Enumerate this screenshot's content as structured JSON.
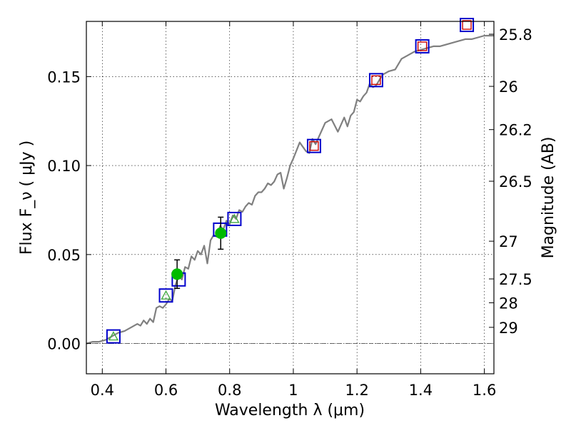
{
  "chart_data": {
    "type": "line",
    "xlabel": "Wavelength  λ (μm)",
    "ylabel": "Flux  F_ν  ( μJy )",
    "y2label": "Magnitude (AB)",
    "xlim": [
      0.35,
      1.63
    ],
    "ylim": [
      -0.017,
      0.181
    ],
    "grid": true,
    "x_ticks": [
      0.4,
      0.6,
      0.8,
      1.0,
      1.2,
      1.4,
      1.6
    ],
    "x_tick_labels": [
      "0.4",
      "0.6",
      "0.8",
      "1",
      "1.2",
      "1.4",
      "1.6"
    ],
    "y_ticks": [
      0.0,
      0.05,
      0.1,
      0.15
    ],
    "y_tick_labels": [
      "0.00",
      "0.05",
      "0.10",
      "0.15"
    ],
    "y2_ticks": [
      {
        "label": "25.8",
        "flux": 0.1738
      },
      {
        "label": "26",
        "flux": 0.1445
      },
      {
        "label": "26.2",
        "flux": 0.1202
      },
      {
        "label": "26.5",
        "flux": 0.0912
      },
      {
        "label": "27",
        "flux": 0.0575
      },
      {
        "label": "27.5",
        "flux": 0.0363
      },
      {
        "label": "28",
        "flux": 0.0229
      },
      {
        "label": "29",
        "flux": 0.0091
      }
    ],
    "model_spectrum": {
      "color": "#808080",
      "x": [
        0.35,
        0.37,
        0.39,
        0.41,
        0.43,
        0.45,
        0.47,
        0.49,
        0.51,
        0.52,
        0.53,
        0.54,
        0.55,
        0.56,
        0.57,
        0.58,
        0.59,
        0.6,
        0.61,
        0.62,
        0.63,
        0.64,
        0.65,
        0.66,
        0.67,
        0.68,
        0.69,
        0.7,
        0.71,
        0.72,
        0.73,
        0.74,
        0.75,
        0.76,
        0.77,
        0.78,
        0.79,
        0.8,
        0.81,
        0.82,
        0.83,
        0.84,
        0.85,
        0.86,
        0.87,
        0.88,
        0.89,
        0.9,
        0.91,
        0.92,
        0.93,
        0.94,
        0.95,
        0.96,
        0.97,
        0.98,
        0.99,
        1.0,
        1.02,
        1.04,
        1.05,
        1.06,
        1.07,
        1.08,
        1.1,
        1.12,
        1.14,
        1.16,
        1.17,
        1.18,
        1.19,
        1.2,
        1.21,
        1.22,
        1.23,
        1.24,
        1.25,
        1.26,
        1.27,
        1.28,
        1.3,
        1.32,
        1.34,
        1.36,
        1.38,
        1.4,
        1.42,
        1.44,
        1.46,
        1.48,
        1.5,
        1.52,
        1.54,
        1.56,
        1.58,
        1.6,
        1.63
      ],
      "y": [
        0.0,
        0.001,
        0.001,
        0.002,
        0.004,
        0.006,
        0.007,
        0.009,
        0.011,
        0.01,
        0.013,
        0.011,
        0.014,
        0.012,
        0.02,
        0.021,
        0.02,
        0.022,
        0.025,
        0.024,
        0.033,
        0.038,
        0.036,
        0.043,
        0.042,
        0.049,
        0.047,
        0.052,
        0.05,
        0.055,
        0.045,
        0.058,
        0.061,
        0.06,
        0.066,
        0.064,
        0.069,
        0.067,
        0.072,
        0.07,
        0.075,
        0.074,
        0.077,
        0.079,
        0.078,
        0.083,
        0.085,
        0.085,
        0.087,
        0.09,
        0.089,
        0.091,
        0.095,
        0.096,
        0.087,
        0.093,
        0.1,
        0.104,
        0.113,
        0.108,
        0.107,
        0.115,
        0.112,
        0.116,
        0.124,
        0.126,
        0.119,
        0.127,
        0.122,
        0.128,
        0.13,
        0.137,
        0.136,
        0.139,
        0.141,
        0.146,
        0.144,
        0.145,
        0.148,
        0.151,
        0.153,
        0.154,
        0.16,
        0.162,
        0.164,
        0.165,
        0.166,
        0.167,
        0.167,
        0.168,
        0.169,
        0.17,
        0.171,
        0.171,
        0.172,
        0.173,
        0.173
      ]
    },
    "series": [
      {
        "name": "",
        "marker": "square",
        "color": "#0000cc",
        "x": [
          0.435,
          0.6,
          0.64,
          0.77,
          0.815,
          1.065,
          1.26,
          1.405,
          1.545
        ],
        "y": [
          0.004,
          0.027,
          0.036,
          0.064,
          0.07,
          0.111,
          0.148,
          0.167,
          0.179
        ]
      },
      {
        "name": "",
        "marker": "open-square",
        "color": "#cc0000",
        "x": [
          1.065,
          1.26,
          1.405,
          1.545
        ],
        "y": [
          0.111,
          0.148,
          0.167,
          0.179
        ]
      },
      {
        "name": "",
        "marker": "open-triangle",
        "color": "#44aa44",
        "x": [
          0.435,
          0.6,
          0.815
        ],
        "y": [
          0.004,
          0.027,
          0.07
        ]
      },
      {
        "name": "",
        "marker": "filled-circle",
        "color": "#00bb00",
        "x": [
          0.635,
          0.772
        ],
        "y": [
          0.039,
          0.062
        ],
        "yerr": [
          0.008,
          0.009
        ]
      }
    ]
  }
}
